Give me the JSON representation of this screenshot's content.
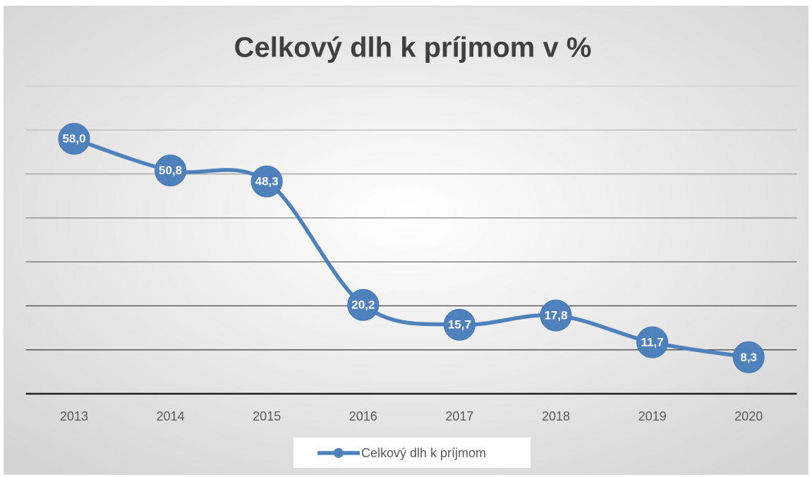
{
  "chart_data": {
    "type": "line",
    "title": "Celkový dlh k príjmom v %",
    "categories": [
      "2013",
      "2014",
      "2015",
      "2016",
      "2017",
      "2018",
      "2019",
      "2020"
    ],
    "series": [
      {
        "name": "Celkový dlh k príjmom",
        "color": "#4f81bd",
        "values": [
          58.0,
          50.8,
          48.3,
          20.2,
          15.7,
          17.8,
          11.7,
          8.3
        ],
        "value_labels": [
          "58,0",
          "50,8",
          "48,3",
          "20,2",
          "15,7",
          "17,8",
          "11,7",
          "8,3"
        ]
      }
    ],
    "ylim": [
      0,
      70
    ],
    "yticks": [
      0,
      10,
      20,
      30,
      40,
      50,
      60,
      70
    ],
    "grid": true,
    "smooth": true,
    "legend": "bottom"
  }
}
